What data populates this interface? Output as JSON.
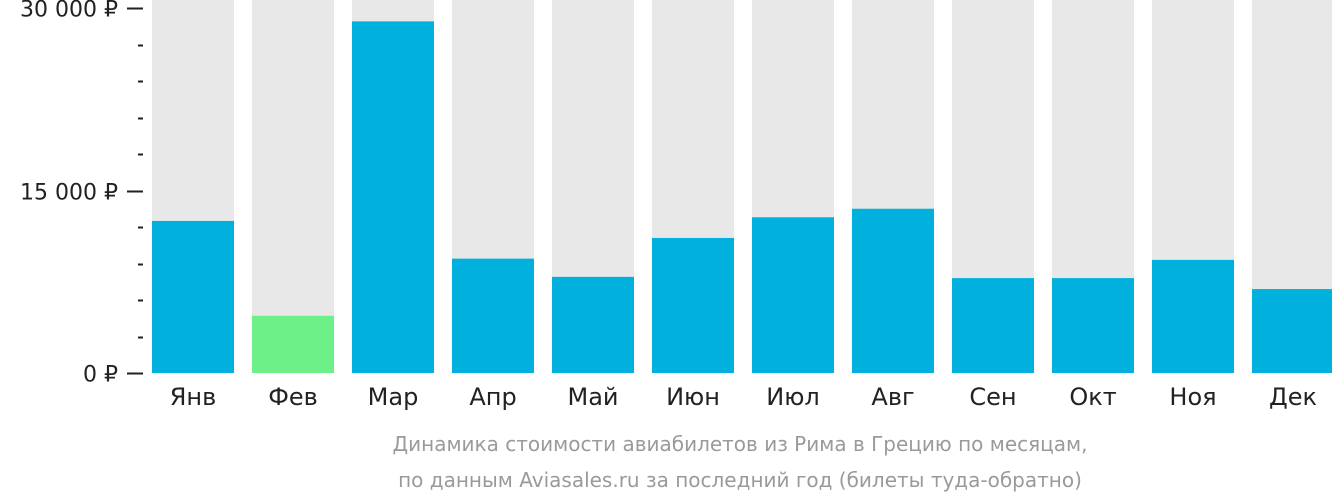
{
  "chart_data": {
    "type": "bar",
    "categories": [
      "Янв",
      "Фев",
      "Мар",
      "Апр",
      "Май",
      "Июн",
      "Июл",
      "Авг",
      "Сен",
      "Окт",
      "Ноя",
      "Дек"
    ],
    "values": [
      12500,
      4700,
      28900,
      9400,
      7900,
      11100,
      12800,
      13500,
      7800,
      7800,
      9300,
      6900
    ],
    "ylim": [
      0,
      30000
    ],
    "y_ticks": [
      {
        "value": 0,
        "label": "0 ₽"
      },
      {
        "value": 15000,
        "label": "15 000 ₽"
      },
      {
        "value": 30000,
        "label": "30 000 ₽"
      }
    ],
    "minor_tick_step": 3000,
    "highlight_index": 1,
    "colors": {
      "bar": "#02b0dd",
      "highlight": "#6cf087",
      "background_bar": "#e8e8e8",
      "axis": "#222222"
    },
    "caption": [
      "Динамика стоимости авиабилетов из Рима в Грецию по месяцам,",
      "по данным Aviasales.ru за последний год (билеты туда-обратно)"
    ]
  }
}
